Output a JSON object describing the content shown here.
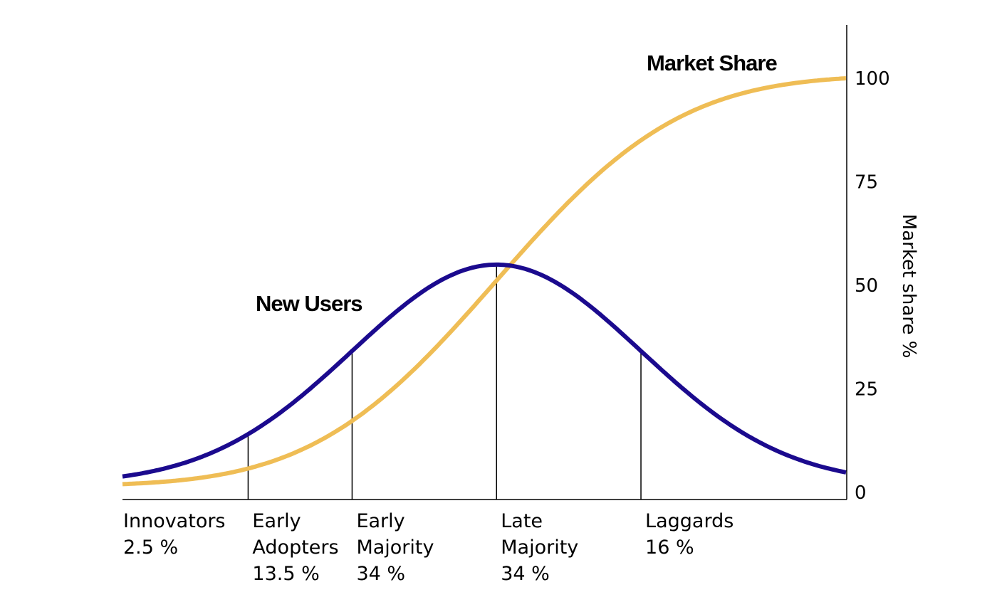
{
  "chart_data": {
    "type": "line",
    "title": "",
    "ylabel": "Market share %",
    "ylim": [
      0,
      100
    ],
    "yticks": [
      0,
      25,
      50,
      75,
      100
    ],
    "grid": false,
    "x_units": "standard deviations from mean adoption time",
    "xlim": [
      -2.59,
      2.42
    ],
    "segment_boundaries": [
      -1.72,
      -1,
      0,
      1
    ],
    "categories": [
      {
        "lines": [
          "Innovators",
          "2.5 %"
        ]
      },
      {
        "lines": [
          "Early",
          "Adopters",
          "13.5 %"
        ]
      },
      {
        "lines": [
          "Early",
          "Majority",
          "34 %"
        ]
      },
      {
        "lines": [
          "Late",
          "Majority",
          "34 %"
        ]
      },
      {
        "lines": [
          "Laggards",
          "16 %"
        ]
      }
    ],
    "series": [
      {
        "name": "New Users",
        "shape": "bell",
        "base": 2,
        "peak": 55,
        "color": "#1b0a8e"
      },
      {
        "name": "Market Share",
        "shape": "s-curve",
        "base": 2,
        "max": 100,
        "color": "#efbd55"
      }
    ]
  }
}
